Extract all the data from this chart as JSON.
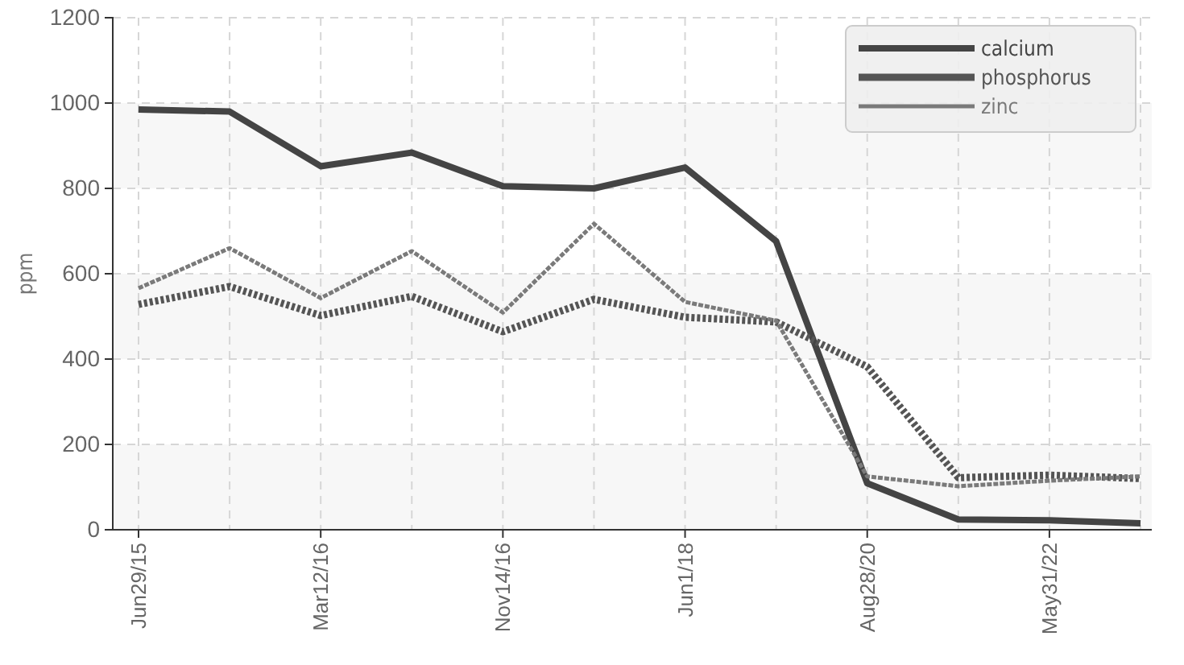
{
  "chart_data": {
    "type": "line",
    "ylabel": "ppm",
    "categories": [
      "Jun29/15",
      null,
      "Mar12/16",
      null,
      "Nov14/16",
      null,
      "Jun1/18",
      null,
      "Aug28/20",
      null,
      "May31/22",
      null
    ],
    "series": [
      {
        "name": "calcium",
        "color": "#444444",
        "line_style": "solid",
        "values": [
          985,
          980,
          852,
          884,
          805,
          800,
          849,
          676,
          109,
          24,
          22,
          15
        ]
      },
      {
        "name": "phosphorus",
        "color": "#555555",
        "line_style": "dotted",
        "values": [
          528,
          570,
          502,
          547,
          464,
          540,
          498,
          487,
          382,
          122,
          128,
          120
        ]
      },
      {
        "name": "zinc",
        "color": "#7a7a7a",
        "line_style": "dashed",
        "values": [
          566,
          660,
          543,
          653,
          509,
          717,
          534,
          490,
          125,
          102,
          115,
          125
        ]
      }
    ],
    "ylim": [
      0,
      1200
    ],
    "yticks": [
      0,
      200,
      400,
      600,
      800,
      1000,
      1200
    ],
    "grid": true,
    "legend": "top right",
    "marker": "none"
  }
}
